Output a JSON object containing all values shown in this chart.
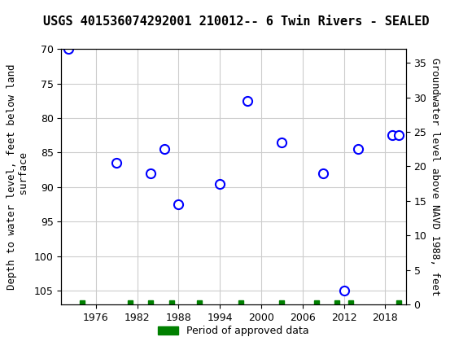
{
  "title": "USGS 401536074292001 210012-- 6 Twin Rivers - SEALED",
  "ylabel_left": "Depth to water level, feet below land\n surface",
  "ylabel_right": "Groundwater level above NAVD 1988, feet",
  "xlabel": "",
  "ylim_left": [
    70,
    107
  ],
  "ylim_right": [
    0,
    37
  ],
  "xlim": [
    1971,
    2021
  ],
  "yticks_left": [
    70,
    75,
    80,
    85,
    90,
    95,
    100,
    105
  ],
  "yticks_right": [
    0,
    5,
    10,
    15,
    20,
    25,
    30,
    35
  ],
  "xticks": [
    1976,
    1982,
    1988,
    1994,
    2000,
    2006,
    2012,
    2018
  ],
  "data_x": [
    1972,
    1979,
    1984,
    1986,
    1988,
    1994,
    1998,
    2003,
    2009,
    2012,
    2014,
    2019,
    2020
  ],
  "data_y": [
    70.0,
    86.5,
    88.0,
    84.5,
    92.5,
    89.5,
    77.5,
    83.5,
    88.0,
    105.0,
    84.5,
    82.5,
    82.5
  ],
  "approved_data_x": [
    1974,
    1981,
    1984,
    1987,
    1991,
    1997,
    2003,
    2008,
    2011,
    2013,
    2020
  ],
  "marker_color": "#0000FF",
  "marker_facecolor": "white",
  "approved_color": "#008000",
  "background_color": "#ffffff",
  "header_color": "#006633",
  "grid_color": "#cccccc",
  "title_fontsize": 11,
  "axis_fontsize": 9,
  "tick_fontsize": 9
}
